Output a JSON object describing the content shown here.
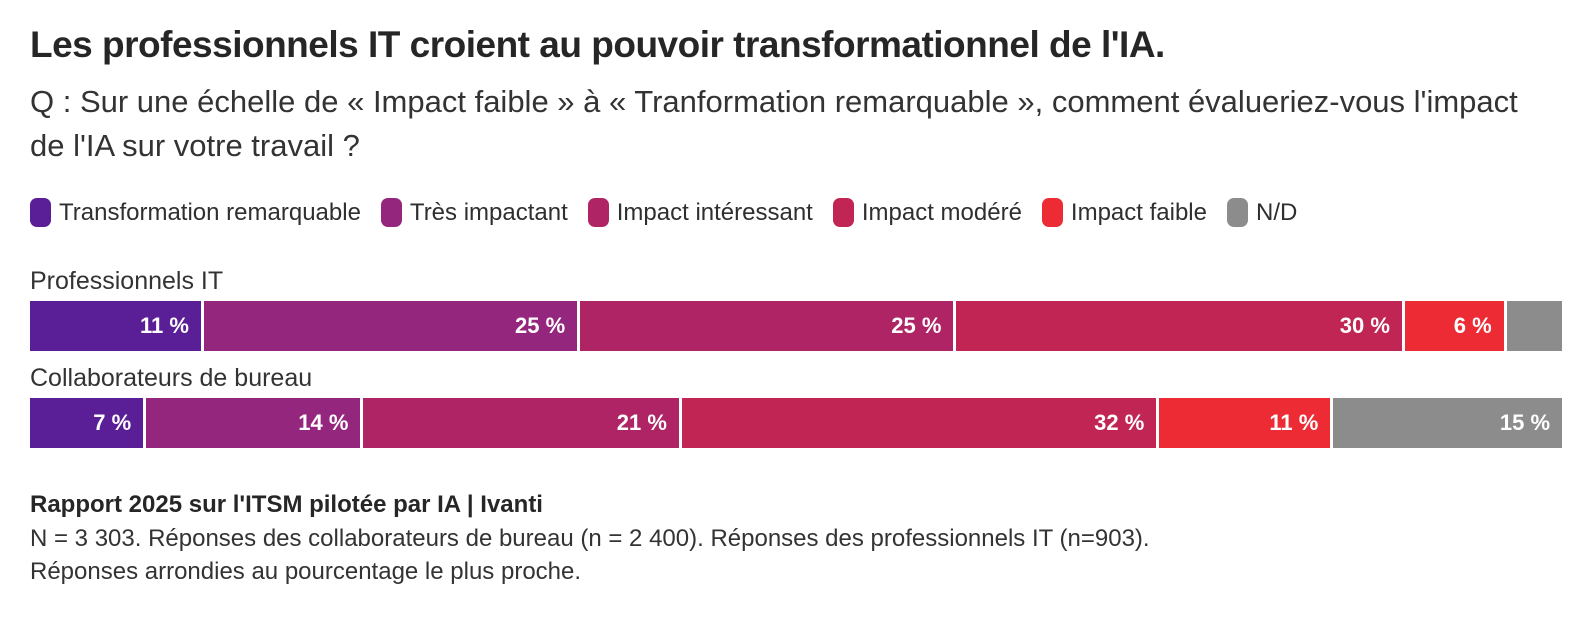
{
  "header": {
    "title": "Les professionnels IT croient au pouvoir transformationnel de l'IA.",
    "question": "Q : Sur une échelle de « Impact faible » à « Tranformation remarquable », comment évalueriez-vous l'impact de l'IA sur votre travail ?"
  },
  "legend": {
    "items": [
      {
        "label": "Transformation remarquable",
        "color": "#5A1E96"
      },
      {
        "label": "Très impactant",
        "color": "#95267D"
      },
      {
        "label": "Impact intéressant",
        "color": "#AE2465"
      },
      {
        "label": "Impact modéré",
        "color": "#C02553"
      },
      {
        "label": "Impact faible",
        "color": "#EC2B34"
      },
      {
        "label": "N/D",
        "color": "#8C8C8C"
      }
    ]
  },
  "chart_data": {
    "type": "bar",
    "orientation": "horizontal",
    "stacked": true,
    "unit": "%",
    "xlim": [
      0,
      100
    ],
    "grid": false,
    "legend_position": "top",
    "categories": [
      "Professionnels IT",
      "Collaborateurs de bureau"
    ],
    "series": [
      {
        "name": "Transformation remarquable",
        "color": "#5A1E96",
        "values": [
          11,
          7
        ]
      },
      {
        "name": "Très impactant",
        "color": "#95267D",
        "values": [
          25,
          14
        ]
      },
      {
        "name": "Impact intéressant",
        "color": "#AE2465",
        "values": [
          25,
          21
        ]
      },
      {
        "name": "Impact modéré",
        "color": "#C02553",
        "values": [
          30,
          32
        ]
      },
      {
        "name": "Impact faible",
        "color": "#EC2B34",
        "values": [
          6,
          11
        ]
      },
      {
        "name": "N/D",
        "color": "#8C8C8C",
        "values": [
          3,
          15
        ]
      }
    ],
    "rows": [
      {
        "category": "Professionnels IT",
        "segments": [
          {
            "series": "Transformation remarquable",
            "value": 11,
            "label": "11 %"
          },
          {
            "series": "Très impactant",
            "value": 25,
            "label": "25 %"
          },
          {
            "series": "Impact intéressant",
            "value": 25,
            "label": "25 %"
          },
          {
            "series": "Impact modéré",
            "value": 30,
            "label": "30 %"
          },
          {
            "series": "Impact faible",
            "value": 6,
            "label": "6 %"
          },
          {
            "series": "N/D",
            "value": 3,
            "label": ""
          }
        ]
      },
      {
        "category": "Collaborateurs de bureau",
        "segments": [
          {
            "series": "Transformation remarquable",
            "value": 7,
            "label": "7 %"
          },
          {
            "series": "Très impactant",
            "value": 14,
            "label": "14 %"
          },
          {
            "series": "Impact intéressant",
            "value": 21,
            "label": "21 %"
          },
          {
            "series": "Impact modéré",
            "value": 32,
            "label": "32 %"
          },
          {
            "series": "Impact faible",
            "value": 11,
            "label": "11 %"
          },
          {
            "series": "N/D",
            "value": 15,
            "label": "15 %"
          }
        ]
      }
    ]
  },
  "footer": {
    "source": "Rapport 2025 sur l'ITSM pilotée par IA | Ivanti",
    "sample": "N = 3 303. Réponses des collaborateurs de bureau (n = 2 400). Réponses des professionnels IT (n=903).",
    "rounding": "Réponses arrondies au pourcentage le plus proche."
  }
}
